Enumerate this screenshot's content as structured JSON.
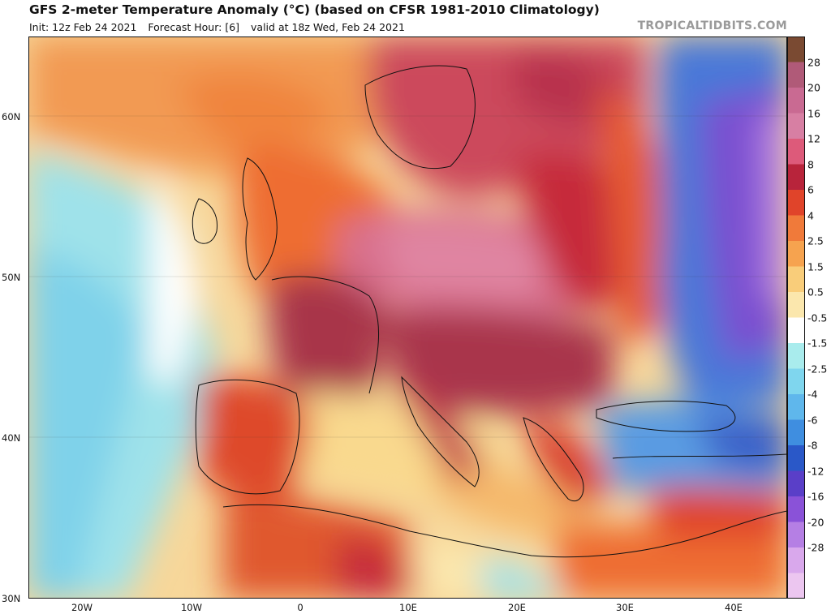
{
  "header": {
    "title": "GFS 2-meter Temperature Anomaly (°C) (based on CFSR 1981-2010 Climatology)",
    "init": "Init: 12z Feb 24 2021",
    "forecast_hour": "Forecast Hour: [6]",
    "valid": "valid at 18z Wed, Feb 24 2021"
  },
  "brand": "TROPICALTIDBITS.COM",
  "axes": {
    "lat_labels": [
      "60N",
      "50N",
      "40N",
      "30N"
    ],
    "lon_labels": [
      "20W",
      "10W",
      "0",
      "10E",
      "20E",
      "30E",
      "40E"
    ]
  },
  "colorbar": {
    "labels": [
      "28",
      "20",
      "16",
      "12",
      "8",
      "6",
      "4",
      "2.5",
      "1.5",
      "0.5",
      "-0.5",
      "-1.5",
      "-2.5",
      "-4",
      "-6",
      "-8",
      "-12",
      "-16",
      "-20",
      "-28"
    ],
    "colors": [
      "#7a4a32",
      "#b05a78",
      "#c96a92",
      "#d77fa3",
      "#dd5a7a",
      "#b8243b",
      "#e0442a",
      "#f07a3a",
      "#f6a34f",
      "#f9cd7a",
      "#fbe7ad",
      "#ffffff",
      "#a9eced",
      "#7fd6ee",
      "#5fb7ec",
      "#3f8ee0",
      "#2a58c8",
      "#5a3fc8",
      "#8a52d8",
      "#b57fe4",
      "#d9a8ec",
      "#ecc6f0"
    ]
  }
}
